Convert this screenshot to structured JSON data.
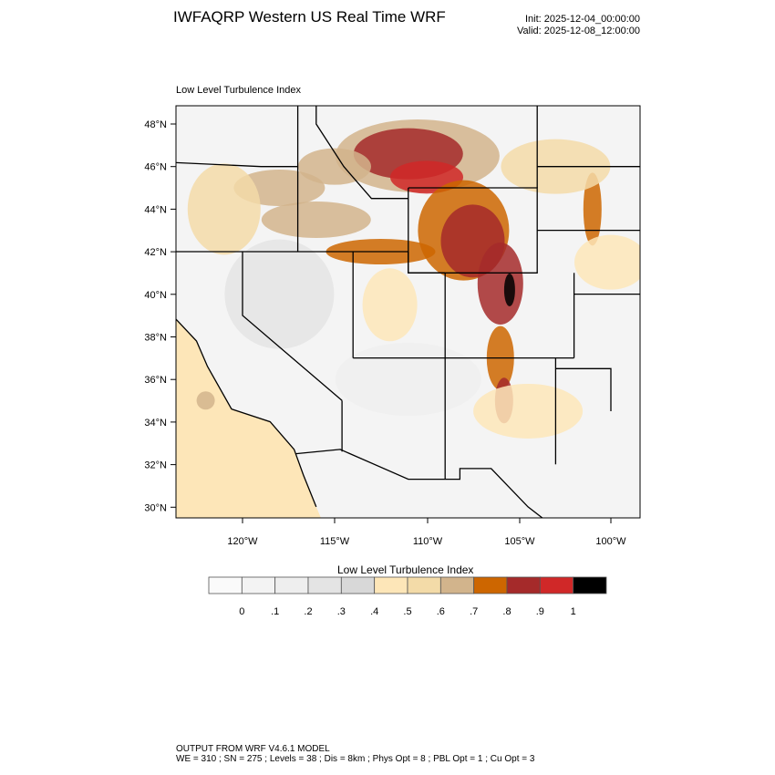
{
  "header": {
    "title": "IWFAQRP Western US Real Time WRF",
    "init": "Init: 2025-12-04_00:00:00",
    "valid": "Valid: 2025-12-08_12:00:00"
  },
  "map": {
    "subtitle": "Low Level Turbulence Index",
    "lat_labels": [
      "48°N",
      "46°N",
      "44°N",
      "42°N",
      "40°N",
      "38°N",
      "36°N",
      "34°N",
      "32°N",
      "30°N"
    ],
    "lon_labels": [
      "120°W",
      "115°W",
      "110°W",
      "105°W",
      "100°W"
    ],
    "ocean_color": "#fde6b8"
  },
  "colorbar": {
    "title": "Low Level Turbulence Index",
    "colors": [
      "#fafafa",
      "#f3f3f3",
      "#eeeeee",
      "#e4e4e4",
      "#d8d8d8",
      "#fde6b8",
      "#f3dba8",
      "#d2b48c",
      "#cd6600",
      "#a52a2a",
      "#d02828",
      "#000000"
    ],
    "labels": [
      "0",
      ".1",
      ".2",
      ".3",
      ".4",
      ".5",
      ".6",
      ".7",
      ".8",
      ".9",
      "1"
    ]
  },
  "footer": {
    "line1": "OUTPUT FROM WRF V4.6.1 MODEL",
    "line2": "WE = 310 ; SN = 275 ; Levels = 38 ; Dis = 8km ; Phys Opt = 8 ; PBL Opt = 1 ; Cu Opt = 3"
  }
}
